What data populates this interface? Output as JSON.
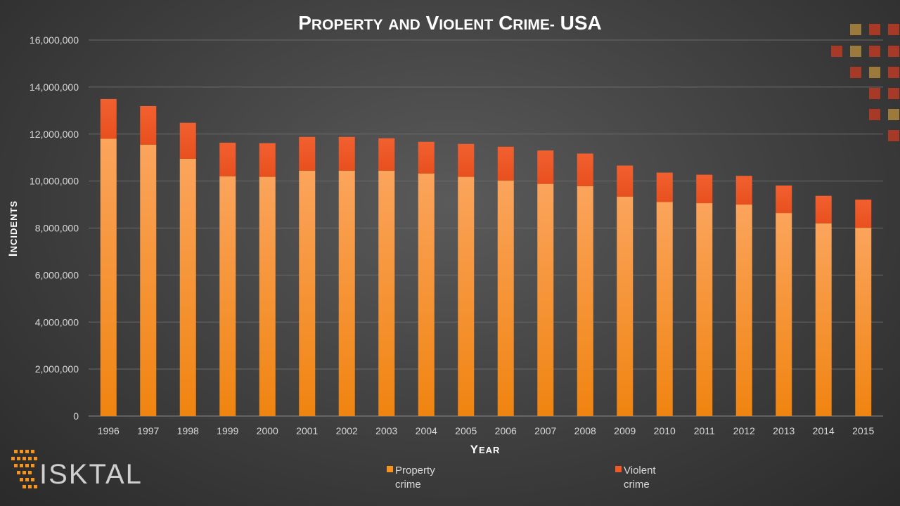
{
  "chart_data": {
    "type": "bar",
    "stacked": true,
    "title": "Property and Violent Crime- USA",
    "xlabel": "Year",
    "ylabel": "Incidents",
    "ylim": [
      0,
      16000000
    ],
    "yticks": [
      0,
      2000000,
      4000000,
      6000000,
      8000000,
      10000000,
      12000000,
      14000000,
      16000000
    ],
    "ytick_labels": [
      "0",
      "2,000,000",
      "4,000,000",
      "6,000,000",
      "8,000,000",
      "10,000,000",
      "12,000,000",
      "14,000,000",
      "16,000,000"
    ],
    "grid": true,
    "legend_position": "bottom",
    "categories": [
      "1996",
      "1997",
      "1998",
      "1999",
      "2000",
      "2001",
      "2002",
      "2003",
      "2004",
      "2005",
      "2006",
      "2007",
      "2008",
      "2009",
      "2010",
      "2011",
      "2012",
      "2013",
      "2014",
      "2015"
    ],
    "series": [
      {
        "name": "Property crime",
        "color": "#f7941d",
        "values": [
          11800000,
          11550000,
          10950000,
          10200000,
          10180000,
          10440000,
          10440000,
          10440000,
          10320000,
          10180000,
          10020000,
          9880000,
          9780000,
          9340000,
          9110000,
          9060000,
          9000000,
          8640000,
          8200000,
          8010000
        ]
      },
      {
        "name": "Violent crime",
        "color": "#f15a24",
        "values": [
          1690000,
          1640000,
          1530000,
          1430000,
          1430000,
          1440000,
          1440000,
          1380000,
          1350000,
          1400000,
          1440000,
          1420000,
          1390000,
          1320000,
          1250000,
          1210000,
          1220000,
          1170000,
          1170000,
          1200000
        ]
      }
    ]
  },
  "logo": {
    "text": "ISKTAL",
    "accent_color": "#f7941d"
  },
  "decoration": {
    "colors": [
      "#a63a26",
      "#9c7a3c"
    ]
  }
}
